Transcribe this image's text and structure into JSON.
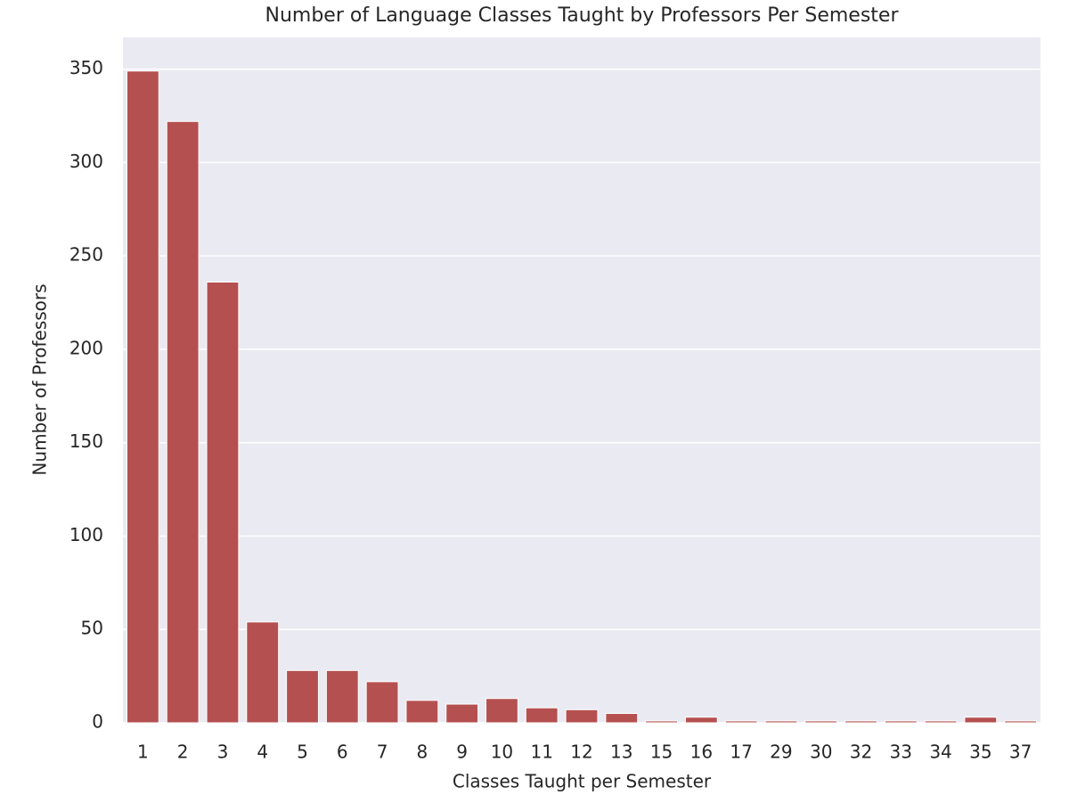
{
  "chart_data": {
    "type": "bar",
    "title": "Number of Language Classes Taught by Professors Per Semester",
    "x_label": "Classes Taught per Semester",
    "y_label": "Number of Professors",
    "categories": [
      "1",
      "2",
      "3",
      "4",
      "5",
      "6",
      "7",
      "8",
      "9",
      "10",
      "11",
      "12",
      "13",
      "15",
      "16",
      "17",
      "29",
      "30",
      "32",
      "33",
      "34",
      "35",
      "37"
    ],
    "values": [
      349,
      322,
      236,
      54,
      28,
      28,
      22,
      12,
      10,
      13,
      8,
      7,
      5,
      1,
      3,
      1,
      1,
      1,
      1,
      1,
      1,
      3,
      1
    ],
    "color": "#b55050",
    "ylim": [
      0,
      367
    ],
    "yticks": [
      0,
      50,
      100,
      150,
      200,
      250,
      300,
      350
    ],
    "grid": true
  }
}
